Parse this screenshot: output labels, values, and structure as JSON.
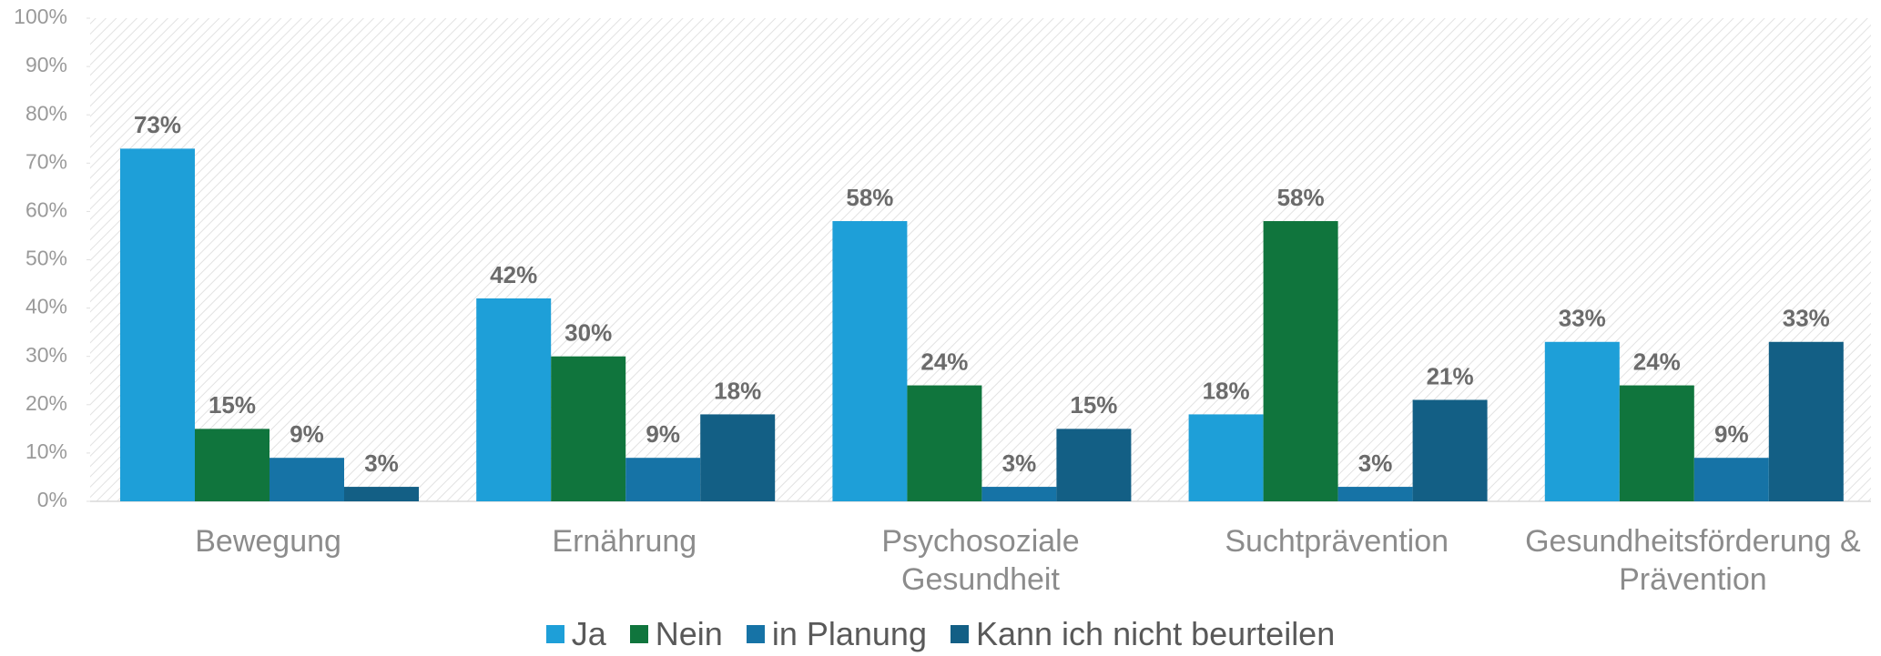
{
  "chart_data": {
    "type": "bar",
    "categories": [
      "Bewegung",
      "Ernährung",
      "Psychosoziale Gesundheit",
      "Suchtprävention",
      "Gesundheitsförderung & Prävention"
    ],
    "series": [
      {
        "name": "Ja",
        "color": "#1e9fd8",
        "values": [
          73,
          42,
          58,
          18,
          33
        ],
        "value_labels": [
          "73%",
          "42%",
          "58%",
          "18%",
          "33%"
        ]
      },
      {
        "name": "Nein",
        "color": "#10753d",
        "values": [
          15,
          30,
          24,
          58,
          24
        ],
        "value_labels": [
          "15%",
          "30%",
          "24%",
          "58%",
          "24%"
        ]
      },
      {
        "name": "in Planung",
        "color": "#1673a6",
        "values": [
          9,
          9,
          3,
          3,
          9
        ],
        "value_labels": [
          "9%",
          "9%",
          "3%",
          "3%",
          "9%"
        ]
      },
      {
        "name": "Kann ich nicht beurteilen",
        "color": "#135f85",
        "values": [
          3,
          18,
          15,
          21,
          33
        ],
        "value_labels": [
          "3%",
          "18%",
          "15%",
          "21%",
          "33%"
        ]
      }
    ],
    "ylim": [
      0,
      100
    ],
    "yticks": [
      {
        "value": 0,
        "label": "0%"
      },
      {
        "value": 10,
        "label": "10%"
      },
      {
        "value": 20,
        "label": "20%"
      },
      {
        "value": 30,
        "label": "30%"
      },
      {
        "value": 40,
        "label": "40%"
      },
      {
        "value": 50,
        "label": "50%"
      },
      {
        "value": 60,
        "label": "60%"
      },
      {
        "value": 70,
        "label": "70%"
      },
      {
        "value": 80,
        "label": "80%"
      },
      {
        "value": 90,
        "label": "90%"
      },
      {
        "value": 100,
        "label": "100%"
      }
    ],
    "legend": "bottom"
  }
}
